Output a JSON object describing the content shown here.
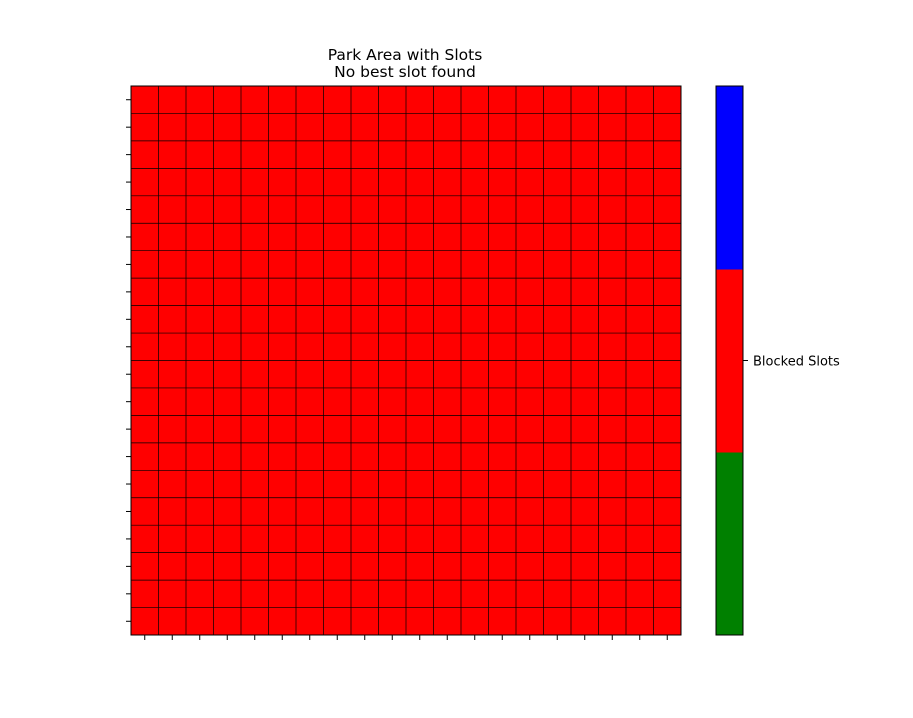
{
  "chart_data": {
    "type": "heatmap",
    "title": "Park Area with Slots",
    "subtitle": "No best slot found",
    "xlabel": "",
    "ylabel": "",
    "rows": 20,
    "cols": 20,
    "cell_value": 1,
    "grid": true,
    "x_tick_labels_shown": false,
    "y_tick_labels_shown": false,
    "colormap": [
      "#008000",
      "#ff0000",
      "#0000ff"
    ],
    "colorbar": {
      "placement": "right",
      "labels": [
        {
          "value": 1,
          "text": "Blocked Slots"
        }
      ]
    }
  }
}
